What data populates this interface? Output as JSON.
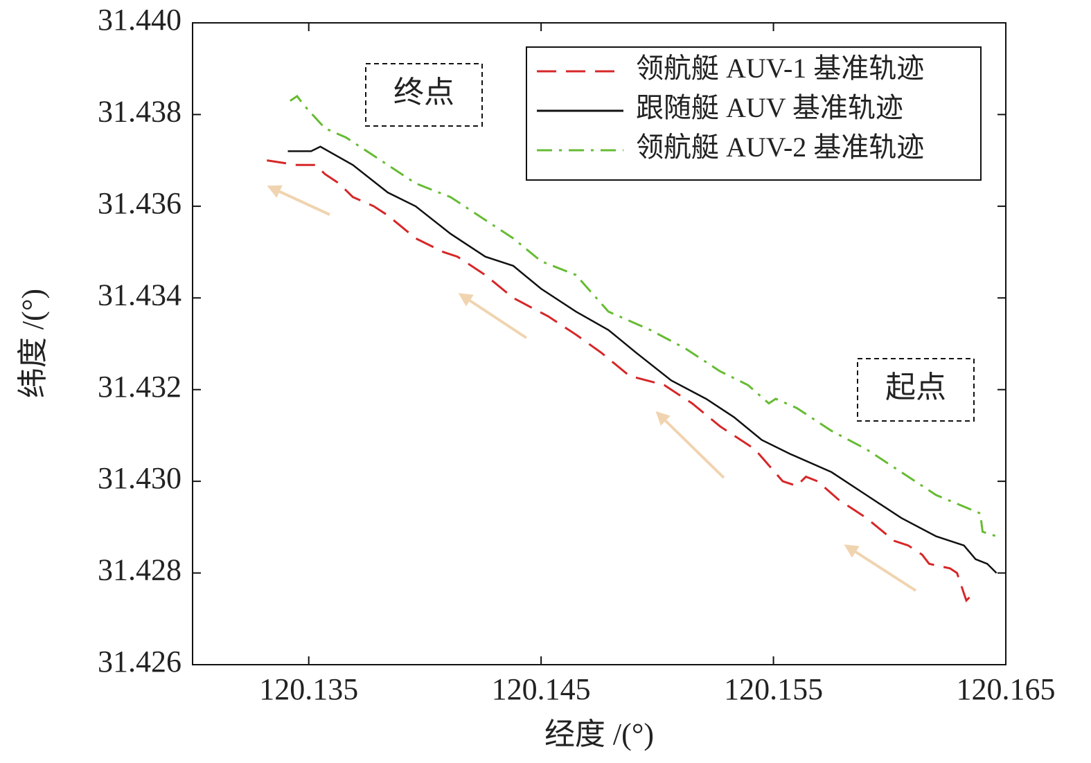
{
  "chart_data": {
    "type": "line",
    "xlabel": "经度 /(°)",
    "ylabel": "纬度 /(°)",
    "annotations": [
      "终点",
      "起点"
    ],
    "xlim": [
      120.13,
      120.165
    ],
    "xticks": [
      120.135,
      120.145,
      120.155,
      120.165
    ],
    "ylim": [
      31.426,
      31.44
    ],
    "yticks": [
      31.426,
      31.428,
      {
        "value": 31.43,
        "label": "31.430"
      },
      31.432,
      31.434,
      31.436,
      31.438,
      {
        "value": 31.44,
        "label": "31.440"
      }
    ],
    "legend": "upper right",
    "series": [
      {
        "name": "领航艇 AUV-1 基准轨迹",
        "color": "#d62728",
        "dash": "dashed",
        "x": [
          120.1332,
          120.1345,
          120.1353,
          120.1357,
          120.1363,
          120.1369,
          120.1378,
          120.1384,
          120.1396,
          120.1408,
          120.1414,
          120.1426,
          120.1438,
          120.1453,
          120.1465,
          120.1476,
          120.1488,
          120.1503,
          120.1515,
          120.1527,
          120.1542,
          120.1554,
          120.156,
          120.1564,
          120.1569,
          120.1578,
          120.159,
          120.1602,
          120.1608,
          120.1614,
          120.1617,
          120.1626,
          120.1629,
          120.1633,
          120.1635
        ],
        "values": [
          31.437,
          31.4369,
          31.4369,
          31.4367,
          31.4365,
          31.4362,
          31.436,
          31.4358,
          31.4353,
          31.435,
          31.4349,
          31.4345,
          31.434,
          31.4336,
          31.4332,
          31.4328,
          31.4323,
          31.4321,
          31.4317,
          31.4312,
          31.4307,
          31.43,
          31.4299,
          31.4301,
          31.43,
          31.4296,
          31.4292,
          31.4287,
          31.4286,
          31.4284,
          31.4282,
          31.4281,
          31.428,
          31.4274,
          31.4275
        ]
      },
      {
        "name": "跟随艇 AUV 基准轨迹",
        "color": "#111111",
        "dash": "solid",
        "x": [
          120.1341,
          120.1351,
          120.1355,
          120.1369,
          120.1384,
          120.1396,
          120.1411,
          120.1426,
          120.1438,
          120.145,
          120.1465,
          120.1479,
          120.1491,
          120.1506,
          120.1521,
          120.1533,
          120.1545,
          120.1557,
          120.1575,
          120.159,
          120.1605,
          120.162,
          120.1632,
          120.1637,
          120.1642,
          120.1646
        ],
        "values": [
          31.4372,
          31.4372,
          31.4373,
          31.4369,
          31.4363,
          31.436,
          31.4354,
          31.4349,
          31.4347,
          31.4342,
          31.4337,
          31.4333,
          31.4328,
          31.4322,
          31.4318,
          31.4314,
          31.4309,
          31.4306,
          31.4302,
          31.4297,
          31.4292,
          31.4288,
          31.4286,
          31.4283,
          31.4282,
          31.428
        ]
      },
      {
        "name": "领航艇 AUV-2 基准轨迹",
        "color": "#66bb33",
        "dash": "dashdot",
        "x": [
          120.1342,
          120.1345,
          120.1348,
          120.1357,
          120.1366,
          120.1381,
          120.1396,
          120.1411,
          120.1426,
          120.1438,
          120.145,
          120.1465,
          120.1479,
          120.1497,
          120.1512,
          120.1527,
          120.1539,
          120.1548,
          120.1551,
          120.156,
          120.1575,
          120.159,
          120.1605,
          120.162,
          120.1639,
          120.164,
          120.1646
        ],
        "values": [
          31.4383,
          31.4384,
          31.4382,
          31.4377,
          31.4375,
          31.437,
          31.4365,
          31.4362,
          31.4357,
          31.4353,
          31.4348,
          31.4345,
          31.4337,
          31.4333,
          31.4329,
          31.4324,
          31.4321,
          31.4317,
          31.4318,
          31.4316,
          31.4311,
          31.4307,
          31.4302,
          31.4297,
          31.4293,
          31.4289,
          31.4288
        ]
      }
    ]
  }
}
